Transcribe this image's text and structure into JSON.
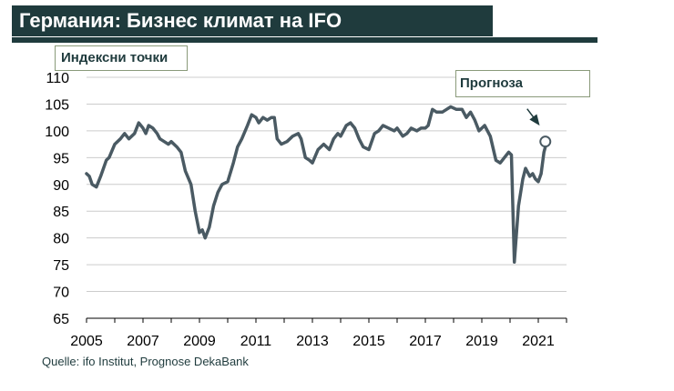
{
  "header": {
    "title": "Германия: Бизнес климат на IFO"
  },
  "footer": {
    "source": "Quelle: ifo Institut, Prognose DekaBank"
  },
  "colors": {
    "header_bg": "#1f3b3d",
    "line": "#4a5a63",
    "grid": "#cccccc",
    "arrow": "#1f3b3d"
  },
  "chart_data": {
    "type": "line",
    "title": "Германия: Бизнес климат на IFO",
    "ylabel": "Индексни точки",
    "xlabel": "",
    "ylim": [
      65,
      110
    ],
    "yticks": [
      65,
      70,
      75,
      80,
      85,
      90,
      95,
      100,
      105,
      110
    ],
    "xlim": [
      2005.0,
      2022.0
    ],
    "xticks": [
      2005,
      2007,
      2009,
      2011,
      2013,
      2015,
      2017,
      2019,
      2021
    ],
    "grid": "horizontal",
    "annotation": {
      "text": "Прогноза",
      "x": 2021.25,
      "y": 98
    },
    "series": [
      {
        "name": "",
        "x": [
          2005.0,
          2005.1,
          2005.2,
          2005.35,
          2005.5,
          2005.7,
          2005.8,
          2006.0,
          2006.2,
          2006.35,
          2006.5,
          2006.7,
          2006.85,
          2007.0,
          2007.1,
          2007.2,
          2007.35,
          2007.5,
          2007.6,
          2007.75,
          2007.9,
          2008.0,
          2008.2,
          2008.35,
          2008.5,
          2008.7,
          2008.85,
          2009.0,
          2009.1,
          2009.2,
          2009.35,
          2009.5,
          2009.65,
          2009.8,
          2010.0,
          2010.2,
          2010.35,
          2010.5,
          2010.7,
          2010.85,
          2011.0,
          2011.1,
          2011.25,
          2011.4,
          2011.55,
          2011.65,
          2011.75,
          2011.9,
          2012.1,
          2012.3,
          2012.5,
          2012.6,
          2012.75,
          2012.9,
          2013.0,
          2013.2,
          2013.4,
          2013.6,
          2013.75,
          2013.9,
          2014.0,
          2014.2,
          2014.35,
          2014.5,
          2014.65,
          2014.8,
          2015.0,
          2015.2,
          2015.35,
          2015.5,
          2015.7,
          2015.9,
          2016.0,
          2016.2,
          2016.35,
          2016.5,
          2016.7,
          2016.85,
          2017.0,
          2017.1,
          2017.25,
          2017.4,
          2017.6,
          2017.75,
          2017.9,
          2018.1,
          2018.3,
          2018.45,
          2018.6,
          2018.75,
          2018.9,
          2019.1,
          2019.3,
          2019.5,
          2019.65,
          2019.8,
          2019.95,
          2020.05,
          2020.15,
          2020.3,
          2020.45,
          2020.55,
          2020.7,
          2020.8,
          2020.9,
          2021.0,
          2021.1,
          2021.2,
          2021.3
        ],
        "values": [
          92,
          91.5,
          90,
          89.5,
          91.5,
          94.5,
          95,
          97.5,
          98.5,
          99.5,
          98.5,
          99.5,
          101.5,
          100.5,
          99.5,
          101,
          100.5,
          99.5,
          98.5,
          98,
          97.5,
          98,
          97,
          96,
          92.5,
          90,
          85,
          81,
          81.5,
          80,
          82,
          86,
          88.5,
          90,
          90.5,
          94,
          97,
          98.5,
          101,
          103,
          102.5,
          101.5,
          102.5,
          102,
          102.5,
          102.5,
          98.5,
          97.5,
          98,
          99,
          99.5,
          98.5,
          95,
          94.5,
          94,
          96.5,
          97.5,
          96.5,
          98.5,
          99.5,
          99,
          101,
          101.5,
          100.5,
          98.5,
          97,
          96.5,
          99.5,
          100,
          101,
          100.5,
          100,
          100.5,
          99,
          99.5,
          100.5,
          100,
          100.5,
          100.5,
          101,
          104,
          103.5,
          103.5,
          104,
          104.5,
          104,
          104,
          102.5,
          103.5,
          102,
          100,
          101,
          99,
          94.5,
          94,
          95,
          96,
          95.5,
          75.5,
          86,
          91,
          93,
          91.5,
          92,
          91,
          90.5,
          92,
          96,
          98
        ]
      }
    ]
  }
}
